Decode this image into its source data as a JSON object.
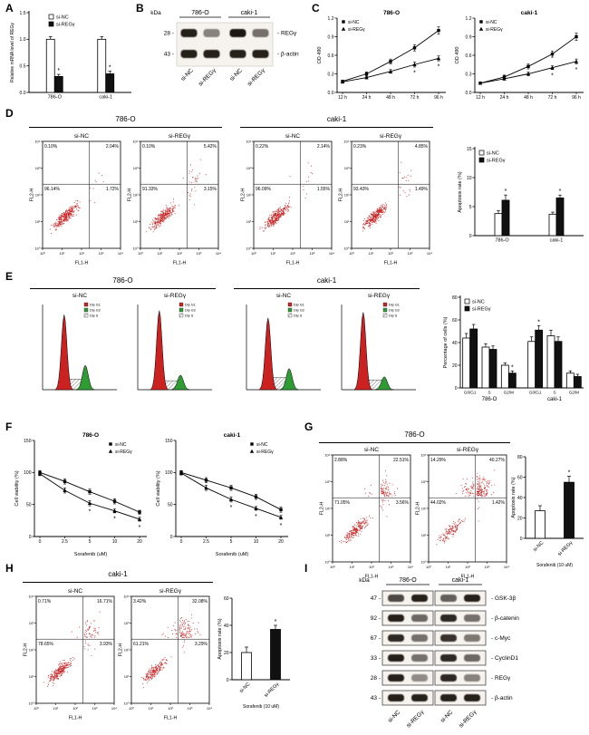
{
  "panels": {
    "A": {
      "label": "A",
      "chart_data": {
        "type": "bar",
        "ylabel": "Relative mRNA level of REGγ",
        "ylim": [
          0,
          1.5
        ],
        "yticks": [
          "0.0",
          "0.5",
          "1.0",
          "1.5"
        ],
        "categories": [
          "786-O",
          "caki-1"
        ],
        "series": [
          {
            "name": "si-NC",
            "fill": "#ffffff",
            "values": [
              1.0,
              1.0
            ],
            "errors": [
              0.05,
              0.05
            ],
            "sig": [
              "",
              ""
            ]
          },
          {
            "name": "si-REGγ",
            "fill": "#111111",
            "values": [
              0.3,
              0.35
            ],
            "errors": [
              0.04,
              0.05
            ],
            "sig": [
              "*",
              "*"
            ]
          }
        ]
      }
    },
    "B": {
      "label": "B",
      "blot": {
        "kda_label": "kDa",
        "groups": [
          "786-O",
          "caki-1"
        ],
        "lanes": [
          "si-NC",
          "si-REGγ",
          "si-NC",
          "si-REGγ"
        ],
        "rows": [
          {
            "kda": "28",
            "protein": "REGγ",
            "intensities": [
              0.95,
              0.4,
              1.0,
              0.5
            ]
          },
          {
            "kda": "43",
            "protein": "β-actin",
            "intensities": [
              0.95,
              0.95,
              0.95,
              0.95
            ]
          }
        ]
      }
    },
    "C": {
      "label": "C",
      "charts": [
        {
          "type": "line",
          "title": "786-O",
          "ylabel": "OD 490",
          "ylim": [
            0,
            1.2
          ],
          "yticks": [
            "0.0",
            "0.3",
            "0.6",
            "0.9",
            "1.2"
          ],
          "categories": [
            "12 h",
            "24 h",
            "48 h",
            "72 h",
            "96 h"
          ],
          "series": [
            {
              "name": "si-NC",
              "marker": "square",
              "values": [
                0.18,
                0.3,
                0.5,
                0.72,
                1.0
              ],
              "errors": [
                0.02,
                0.03,
                0.04,
                0.05,
                0.06
              ]
            },
            {
              "name": "si-REGγ",
              "marker": "triangle",
              "values": [
                0.17,
                0.24,
                0.34,
                0.45,
                0.55
              ],
              "errors": [
                0.02,
                0.02,
                0.03,
                0.04,
                0.04
              ],
              "sig": [
                "",
                "",
                "",
                "*",
                "*"
              ]
            }
          ]
        },
        {
          "type": "line",
          "title": "caki-1",
          "ylabel": "OD 490",
          "ylim": [
            0,
            1.2
          ],
          "yticks": [
            "0.0",
            "0.3",
            "0.6",
            "0.9",
            "1.2"
          ],
          "categories": [
            "12 h",
            "24 h",
            "48 h",
            "72 h",
            "96 h"
          ],
          "series": [
            {
              "name": "si-NC",
              "marker": "square",
              "values": [
                0.15,
                0.25,
                0.42,
                0.62,
                0.9
              ],
              "errors": [
                0.02,
                0.03,
                0.04,
                0.05,
                0.06
              ]
            },
            {
              "name": "si-REGγ",
              "marker": "triangle",
              "values": [
                0.15,
                0.22,
                0.3,
                0.4,
                0.5
              ],
              "errors": [
                0.02,
                0.02,
                0.03,
                0.03,
                0.04
              ],
              "sig": [
                "",
                "",
                "",
                "*",
                "*"
              ]
            }
          ]
        }
      ]
    },
    "D": {
      "label": "D",
      "flow_axes": {
        "x": "FL1-H",
        "y": "FL2-H",
        "ticks": [
          "10⁰",
          "10¹",
          "10²",
          "10³",
          "10⁴"
        ]
      },
      "groups": [
        {
          "name": "786-O",
          "plots": [
            {
              "condition": "si-NC",
              "quadrants": {
                "ul": "0.10%",
                "ur": "2.04%",
                "ll": "96.14%",
                "lr": "1.72%"
              }
            },
            {
              "condition": "si-REGγ",
              "quadrants": {
                "ul": "0.10%",
                "ur": "5.42%",
                "ll": "91.33%",
                "lr": "3.15%"
              }
            }
          ]
        },
        {
          "name": "caki-1",
          "plots": [
            {
              "condition": "si-NC",
              "quadrants": {
                "ul": "0.22%",
                "ur": "2.14%",
                "ll": "96.09%",
                "lr": "1.55%"
              }
            },
            {
              "condition": "si-REGγ",
              "quadrants": {
                "ul": "0.23%",
                "ur": "4.85%",
                "ll": "93.43%",
                "lr": "1.49%"
              }
            }
          ]
        }
      ],
      "chart_data": {
        "type": "bar",
        "ylabel": "Apoptosis rate (%)",
        "ylim": [
          0,
          15
        ],
        "yticks": [
          "0",
          "5",
          "10",
          "15"
        ],
        "categories": [
          "786-O",
          "caki-1"
        ],
        "series": [
          {
            "name": "si-NC",
            "fill": "#ffffff",
            "values": [
              3.8,
              3.7
            ],
            "errors": [
              0.5,
              0.35
            ],
            "sig": [
              "",
              ""
            ]
          },
          {
            "name": "si-REGγ",
            "fill": "#111111",
            "values": [
              6.1,
              6.5
            ],
            "errors": [
              0.9,
              0.5
            ],
            "sig": [
              "*",
              "*"
            ]
          }
        ]
      }
    },
    "E": {
      "label": "E",
      "hist_legend": [
        "Dip G1",
        "Dip G2",
        "Dip S"
      ],
      "groups": [
        {
          "name": "786-O",
          "hists": [
            {
              "condition": "si-NC",
              "peaks": {
                "g1": 0.92,
                "g2": 0.3,
                "s": 0.13
              }
            },
            {
              "condition": "si-REGγ",
              "peaks": {
                "g1": 0.97,
                "g2": 0.18,
                "s": 0.11
              }
            }
          ]
        },
        {
          "name": "caki-1",
          "hists": [
            {
              "condition": "si-NC",
              "peaks": {
                "g1": 0.88,
                "g2": 0.26,
                "s": 0.15
              }
            },
            {
              "condition": "si-REGγ",
              "peaks": {
                "g1": 0.95,
                "g2": 0.16,
                "s": 0.12
              }
            }
          ]
        }
      ],
      "chart_data": {
        "type": "bar",
        "ylabel": "Percentage of cells (%)",
        "ylim": [
          0,
          80
        ],
        "yticks": [
          "0",
          "20",
          "40",
          "60",
          "80"
        ],
        "categories": [
          "G0/G1",
          "S",
          "G2/M",
          "G0/G1",
          "S",
          "G2/M"
        ],
        "group_labels": [
          "786-O",
          "caki-1"
        ],
        "series": [
          {
            "name": "si-NC",
            "fill": "#ffffff",
            "values": [
              44,
              36,
              20,
              41,
              46,
              13
            ],
            "errors": [
              4,
              3,
              2,
              4,
              5,
              2
            ],
            "sig": [
              "",
              "",
              "",
              "",
              "",
              ""
            ]
          },
          {
            "name": "si-REGγ",
            "fill": "#111111",
            "values": [
              52,
              34,
              13,
              51,
              41,
              10
            ],
            "errors": [
              4,
              3,
              2,
              4,
              4,
              2
            ],
            "sig": [
              "",
              "",
              "*",
              "*",
              "",
              ""
            ]
          }
        ]
      }
    },
    "F": {
      "label": "F",
      "charts": [
        {
          "type": "line",
          "title": "786-O",
          "ylabel": "Cell viability (%)",
          "xlabel": "Sorafenib (uM)",
          "ylim": [
            0,
            150
          ],
          "yticks": [
            "0",
            "50",
            "100",
            "150"
          ],
          "categories": [
            "0",
            "2.5",
            "5",
            "10",
            "20"
          ],
          "series": [
            {
              "name": "si-NC",
              "marker": "square",
              "values": [
                100,
                86,
                70,
                55,
                38
              ],
              "errors": [
                3,
                4,
                4,
                4,
                3
              ]
            },
            {
              "name": "si-REGγ",
              "marker": "triangle",
              "values": [
                98,
                72,
                52,
                40,
                27
              ],
              "errors": [
                3,
                4,
                4,
                3,
                3
              ],
              "sig": [
                "",
                "",
                "*",
                "*",
                "*"
              ]
            }
          ]
        },
        {
          "type": "line",
          "title": "caki-1",
          "ylabel": "Cell viability (%)",
          "xlabel": "Sorafenib (uM)",
          "ylim": [
            0,
            150
          ],
          "yticks": [
            "0",
            "50",
            "100",
            "150"
          ],
          "categories": [
            "0",
            "2.5",
            "5",
            "10",
            "20"
          ],
          "series": [
            {
              "name": "si-NC",
              "marker": "square",
              "values": [
                100,
                88,
                76,
                62,
                42
              ],
              "errors": [
                3,
                4,
                4,
                4,
                4
              ]
            },
            {
              "name": "si-REGγ",
              "marker": "triangle",
              "values": [
                99,
                76,
                58,
                44,
                30
              ],
              "errors": [
                3,
                4,
                4,
                3,
                3
              ],
              "sig": [
                "",
                "",
                "*",
                "*",
                "*"
              ]
            }
          ]
        }
      ]
    },
    "G": {
      "label": "G",
      "cell_line": "786-O",
      "flow_axes": {
        "x": "FL1-H",
        "y": "FL2-H",
        "ticks": [
          "10⁰",
          "10¹",
          "10²",
          "10³",
          "10⁴"
        ]
      },
      "plots": [
        {
          "condition": "si-NC",
          "quadrants": {
            "ul": "2.88%",
            "ur": "22.51%",
            "ll": "71.05%",
            "lr": "3.56%"
          }
        },
        {
          "condition": "si-REGγ",
          "quadrants": {
            "ul": "14.29%",
            "ur": "40.27%",
            "ll": "44.02%",
            "lr": "1.42%"
          }
        }
      ],
      "chart_data": {
        "type": "bar",
        "ylabel": "Apoptosis rate (%)",
        "xlabel": "Sorafenib (10 uM)",
        "ylim": [
          0,
          80
        ],
        "yticks": [
          "0",
          "20",
          "40",
          "60",
          "80"
        ],
        "bars": [
          {
            "label": "si-NC",
            "value": 27,
            "error": 5,
            "fill": "#ffffff",
            "sig": ""
          },
          {
            "label": "si-REGγ",
            "value": 55,
            "error": 6,
            "fill": "#111111",
            "sig": "*"
          }
        ]
      }
    },
    "H": {
      "label": "H",
      "cell_line": "caki-1",
      "flow_axes": {
        "x": "FL1-H",
        "y": "FL2-H",
        "ticks": [
          "10⁰",
          "10¹",
          "10²",
          "10³",
          "10⁴"
        ]
      },
      "plots": [
        {
          "condition": "si-NC",
          "quadrants": {
            "ul": "0.71%",
            "ur": "16.71%",
            "ll": "78.65%",
            "lr": "3.93%"
          }
        },
        {
          "condition": "si-REGγ",
          "quadrants": {
            "ul": "3.42%",
            "ur": "32.08%",
            "ll": "61.21%",
            "lr": "3.29%"
          }
        }
      ],
      "chart_data": {
        "type": "bar",
        "ylabel": "Apoptosis rate (%)",
        "xlabel": "Sorafenib (10 uM)",
        "ylim": [
          0,
          60
        ],
        "yticks": [
          "0",
          "20",
          "40",
          "60"
        ],
        "bars": [
          {
            "label": "si-NC",
            "value": 20,
            "error": 4,
            "fill": "#ffffff",
            "sig": ""
          },
          {
            "label": "si-REGγ",
            "value": 37,
            "error": 3,
            "fill": "#111111",
            "sig": "*"
          }
        ]
      }
    },
    "I": {
      "label": "I",
      "blot": {
        "kda_label": "kDa",
        "groups": [
          "786-O",
          "caki-1"
        ],
        "lanes": [
          "si-NC",
          "si-REGγ",
          "si-NC",
          "si-REGγ"
        ],
        "rows": [
          {
            "kda": "47",
            "protein": "GSK-3β",
            "intensities": [
              0.72,
              0.95,
              0.6,
              0.95
            ]
          },
          {
            "kda": "92",
            "protein": "β-catenin",
            "intensities": [
              0.95,
              0.55,
              0.9,
              0.5
            ]
          },
          {
            "kda": "67",
            "protein": "c-Myc",
            "intensities": [
              0.9,
              0.5,
              0.85,
              0.45
            ]
          },
          {
            "kda": "33",
            "protein": "CyclinD1",
            "intensities": [
              0.95,
              0.5,
              0.9,
              0.55
            ]
          },
          {
            "kda": "28",
            "protein": "REGγ",
            "intensities": [
              0.95,
              0.35,
              0.9,
              0.4
            ]
          },
          {
            "kda": "43",
            "protein": "β-actin",
            "intensities": [
              0.95,
              0.95,
              0.95,
              0.95
            ]
          }
        ]
      }
    }
  }
}
